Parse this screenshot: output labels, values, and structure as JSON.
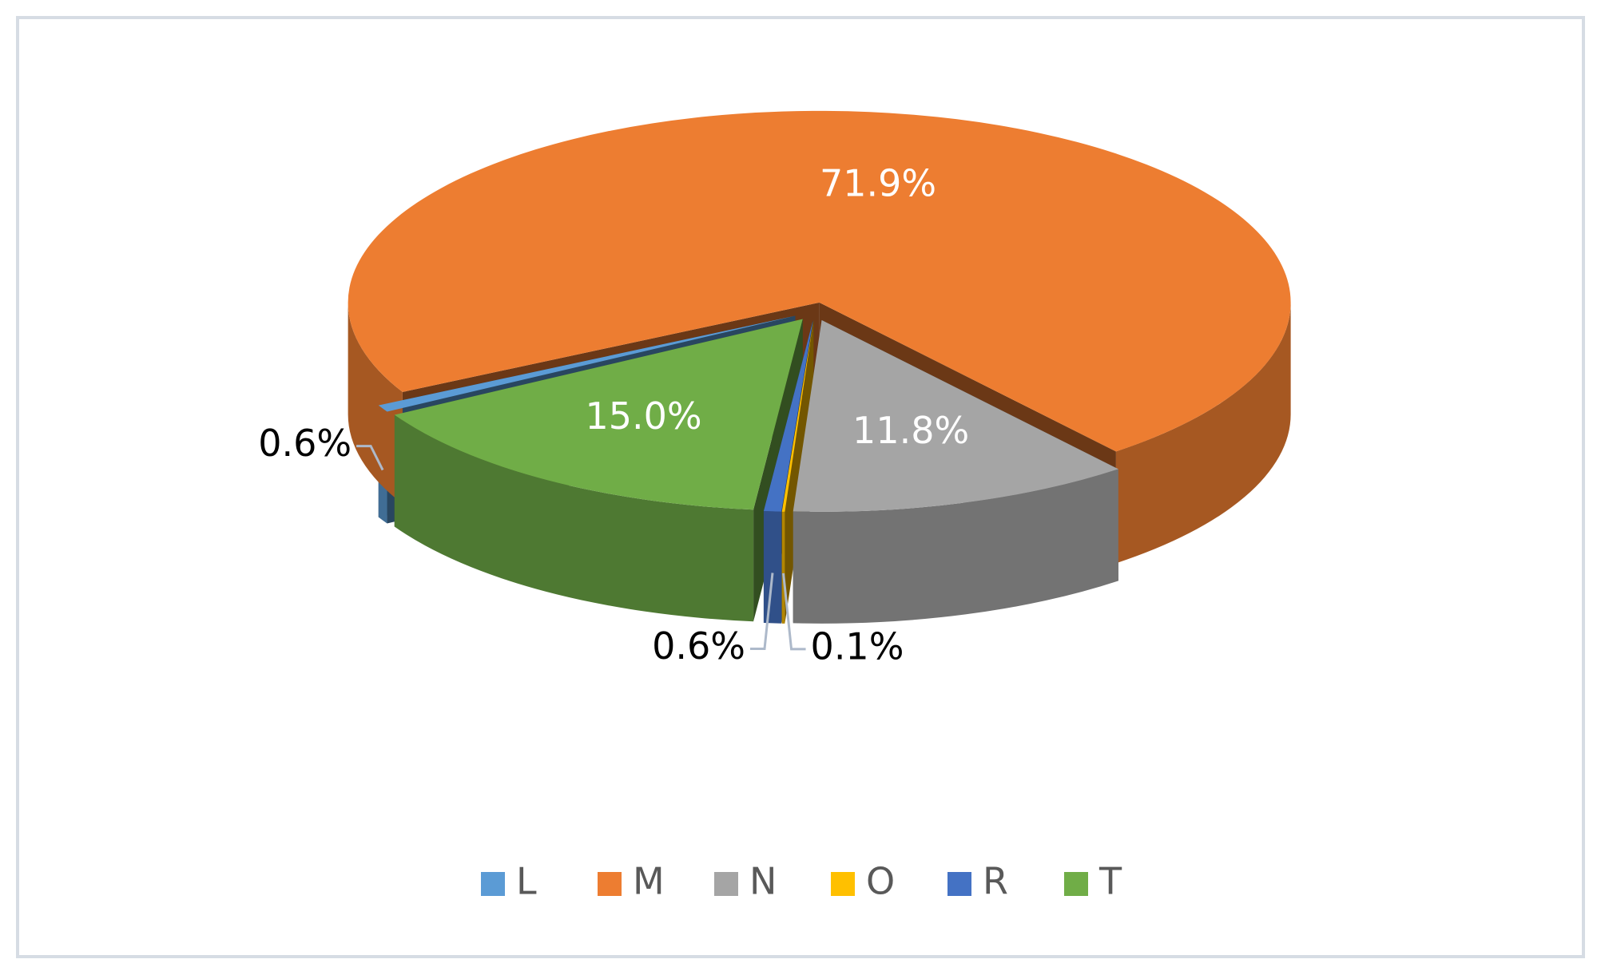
{
  "chart_data": {
    "type": "pie3d",
    "categories": [
      "L",
      "M",
      "N",
      "O",
      "R",
      "T"
    ],
    "values": [
      0.6,
      71.9,
      11.8,
      0.1,
      0.6,
      15.0
    ],
    "value_labels": [
      "0.6%",
      "71.9%",
      "11.8%",
      "0.1%",
      "0.6%",
      "15.0%"
    ],
    "colors": [
      "#5b9bd5",
      "#ed7d31",
      "#a5a5a5",
      "#ffc000",
      "#4472c4",
      "#70ad47"
    ],
    "legend": "bottom"
  }
}
